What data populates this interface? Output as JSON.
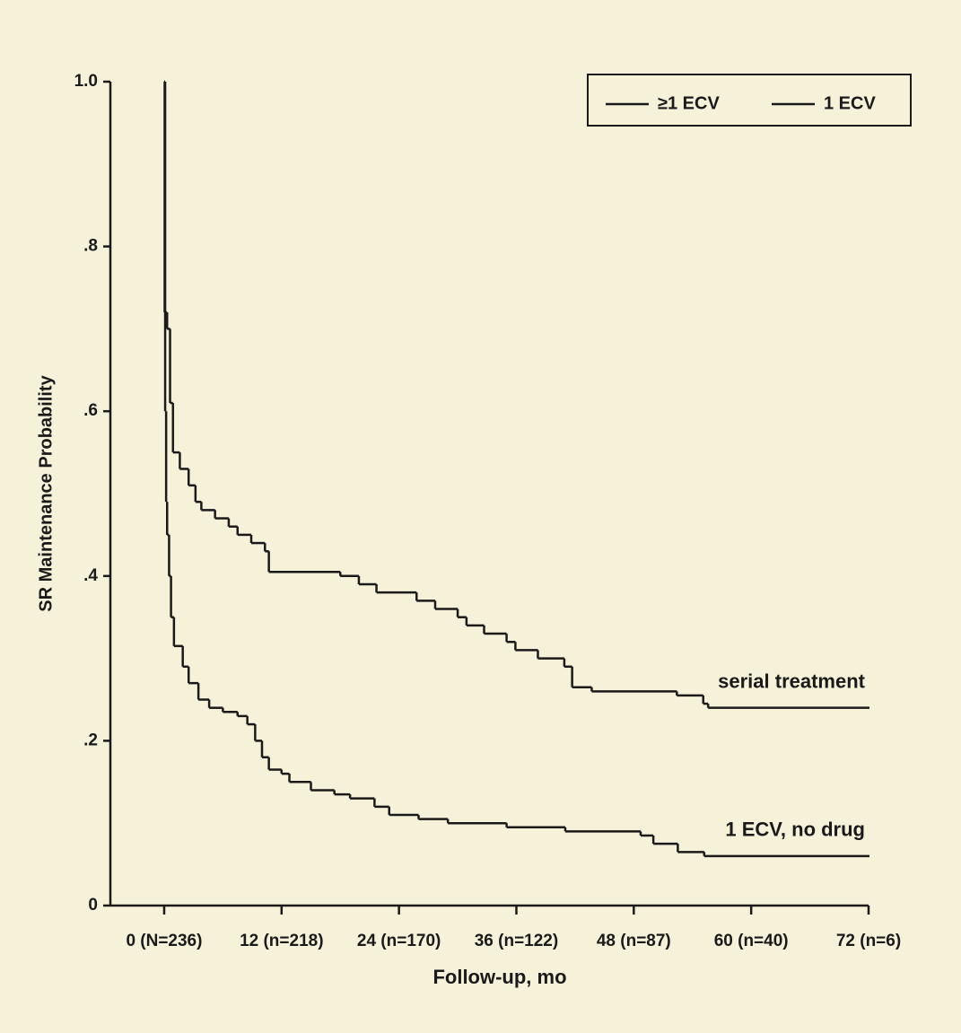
{
  "chart_data": {
    "type": "step",
    "x_label": "Follow-up, mo",
    "y_label": "SR Maintenance Probability",
    "xlim": [
      -5.5,
      72
    ],
    "ylim": [
      0,
      1
    ],
    "xticks": [
      {
        "value": 0,
        "label": "0 (N=236)"
      },
      {
        "value": 12,
        "label": "12 (n=218)"
      },
      {
        "value": 24,
        "label": "24 (n=170)"
      },
      {
        "value": 36,
        "label": "36 (n=122)"
      },
      {
        "value": 48,
        "label": "48 (n=87)"
      },
      {
        "value": 60,
        "label": "60 (n=40)"
      },
      {
        "value": 72,
        "label": "72 (n=6)"
      }
    ],
    "yticks": [
      0,
      {
        "value": 0.2,
        "label": ".2"
      },
      {
        "value": 0.4,
        "label": ".4"
      },
      {
        "value": 0.6,
        "label": ".6"
      },
      {
        "value": 0.8,
        "label": ".8"
      },
      {
        "value": 1,
        "label": "1.0"
      }
    ],
    "legend": "top-right",
    "series": [
      {
        "name": "≥1 ECV",
        "color": "#1a1a1a",
        "annotation": "serial treatment",
        "x": [
          0,
          0.05,
          0.3,
          0.6,
          0.9,
          1.6,
          2.5,
          3.2,
          3.8,
          5.2,
          6.6,
          7.5,
          8.9,
          10.3,
          10.7,
          18,
          19.9,
          21.7,
          25.8,
          27.7,
          30,
          30.9,
          32.7,
          35,
          35.9,
          38.2,
          40.9,
          41.7,
          43.7,
          52.4,
          55.1,
          55.6,
          72
        ],
        "values": [
          1.0,
          0.72,
          0.7,
          0.61,
          0.55,
          0.53,
          0.51,
          0.49,
          0.48,
          0.47,
          0.46,
          0.45,
          0.44,
          0.43,
          0.405,
          0.4,
          0.39,
          0.38,
          0.37,
          0.36,
          0.35,
          0.34,
          0.33,
          0.32,
          0.31,
          0.3,
          0.29,
          0.265,
          0.26,
          0.255,
          0.245,
          0.24,
          0.24
        ]
      },
      {
        "name": "1 ECV",
        "color": "#1a1a1a",
        "annotation": "1 ECV, no drug",
        "x": [
          0,
          0.1,
          0.2,
          0.3,
          0.5,
          0.7,
          1.0,
          1.9,
          2.5,
          3.5,
          4.6,
          6.0,
          7.5,
          8.5,
          9.3,
          10.0,
          10.7,
          12.0,
          12.8,
          15.0,
          17.4,
          19.0,
          21.5,
          23.0,
          26.0,
          29.0,
          35.0,
          41.0,
          48.7,
          50.0,
          52.5,
          55.2,
          72
        ],
        "values": [
          1.0,
          0.6,
          0.49,
          0.45,
          0.4,
          0.35,
          0.315,
          0.29,
          0.27,
          0.25,
          0.24,
          0.235,
          0.23,
          0.22,
          0.2,
          0.18,
          0.165,
          0.16,
          0.15,
          0.14,
          0.135,
          0.13,
          0.12,
          0.11,
          0.105,
          0.1,
          0.095,
          0.09,
          0.085,
          0.075,
          0.065,
          0.06,
          0.06
        ]
      }
    ]
  }
}
